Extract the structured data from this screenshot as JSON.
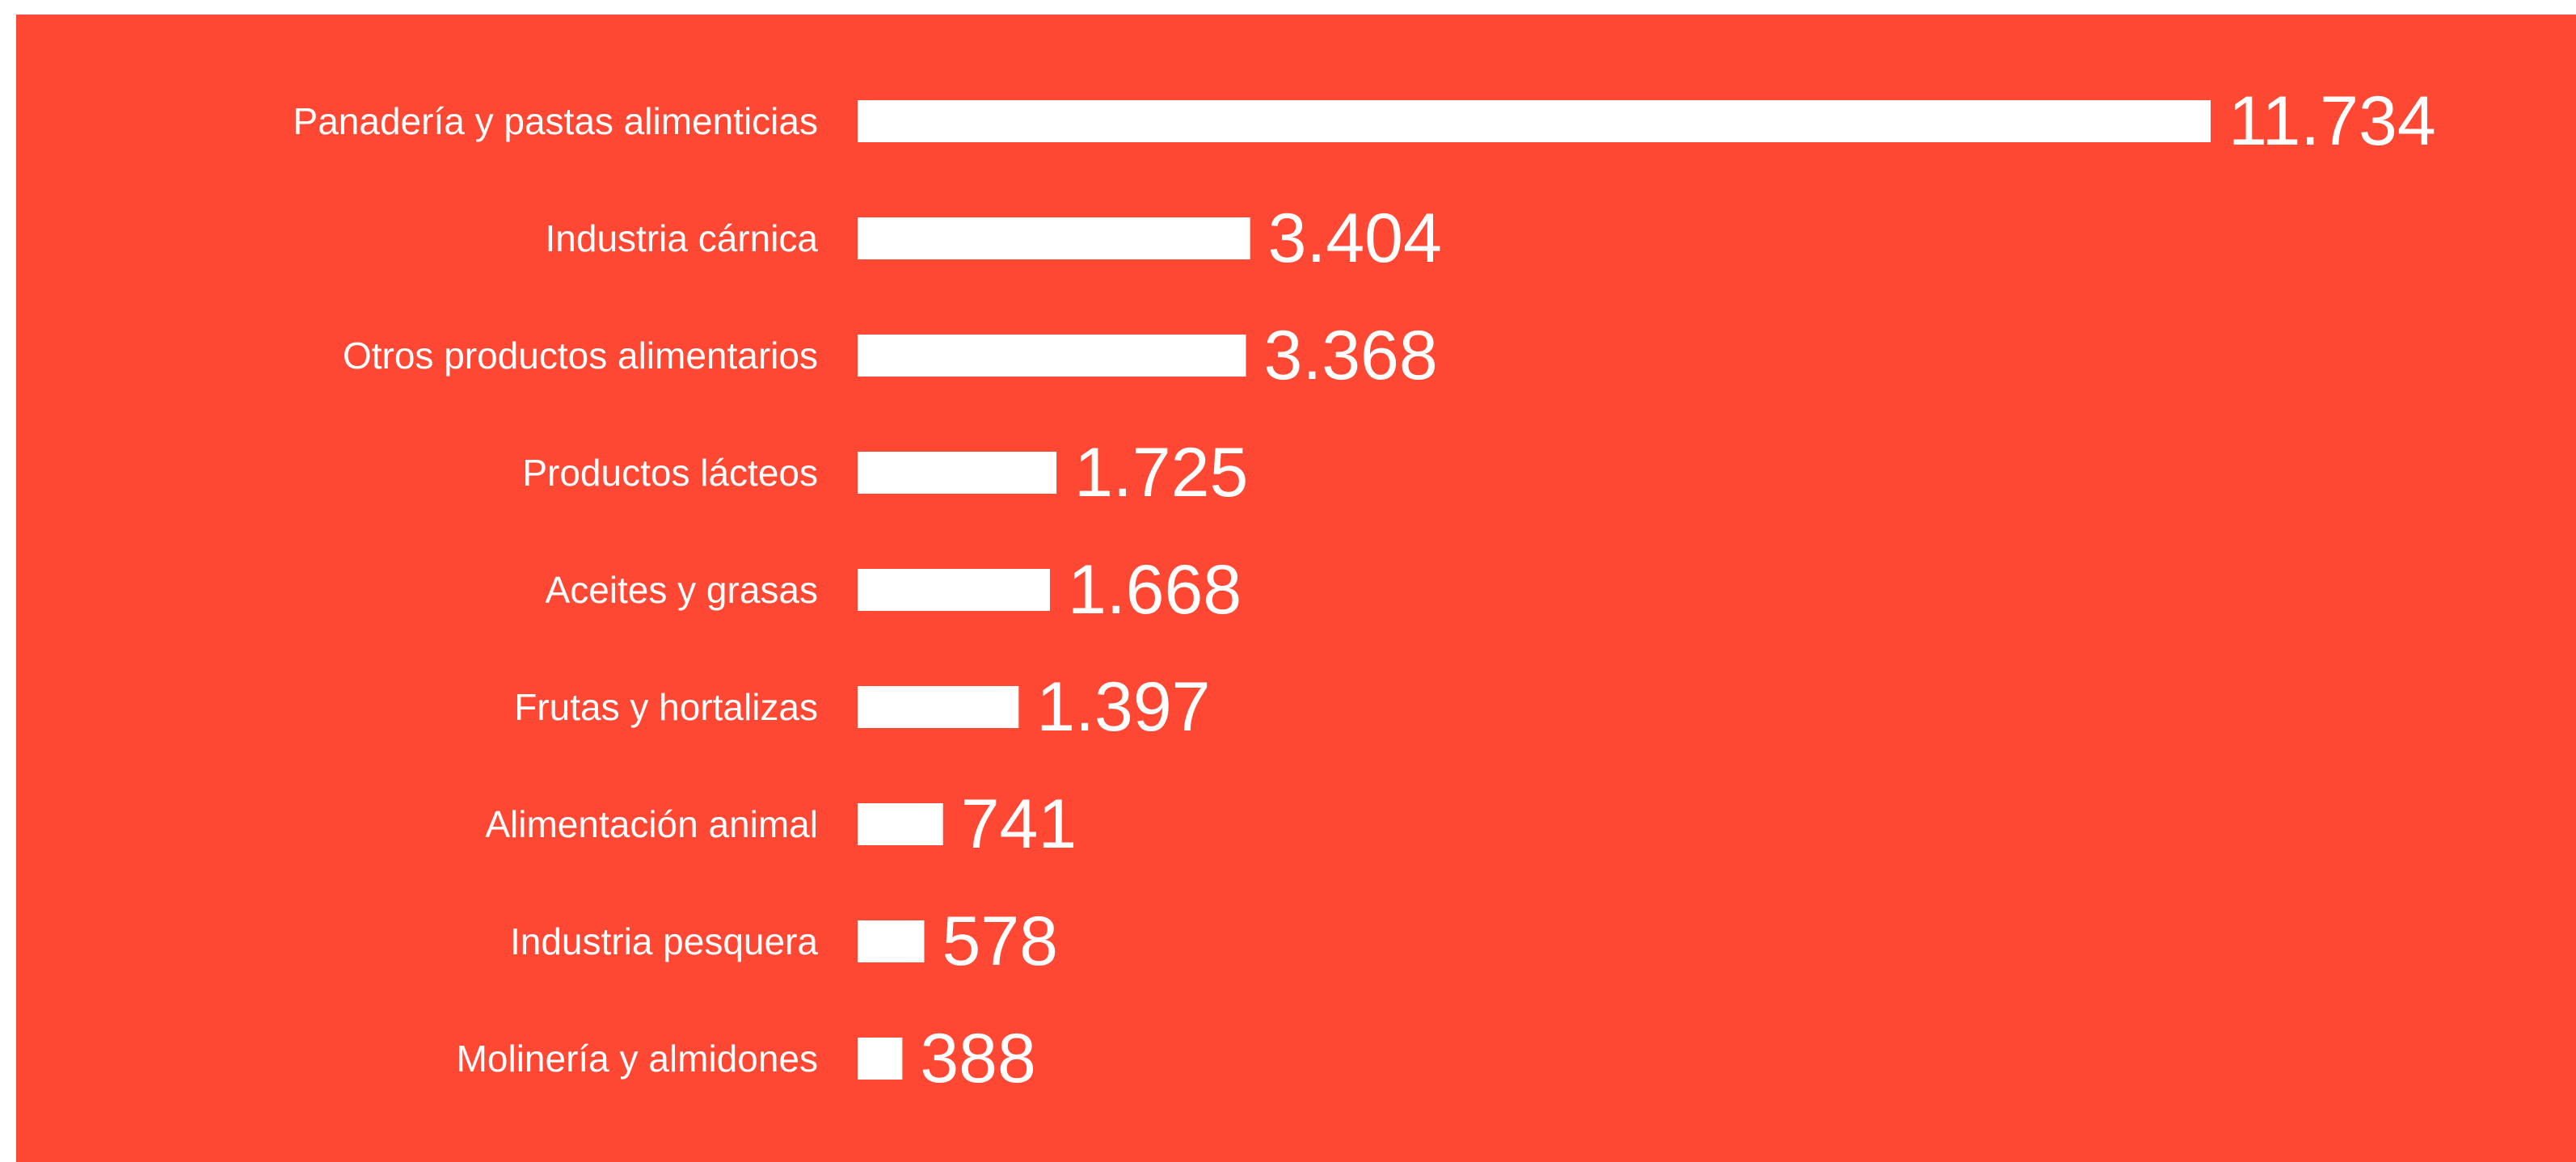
{
  "colors": {
    "background": "#ff4834",
    "bar": "#ffffff",
    "text": "#ffffff"
  },
  "chart_data": {
    "type": "bar",
    "orientation": "horizontal",
    "title": "",
    "xlabel": "",
    "ylabel": "",
    "grid": false,
    "legend": "none",
    "xlim": [
      0,
      11734
    ],
    "categories": [
      "Panadería y pastas alimenticias",
      "Industria cárnica",
      "Otros productos alimentarios",
      "Productos lácteos",
      "Aceites y grasas",
      "Frutas y hortalizas",
      "Alimentación animal",
      "Industria pesquera",
      "Molinería y almidones"
    ],
    "values": [
      11734,
      3404,
      3368,
      1725,
      1668,
      1397,
      741,
      578,
      388
    ],
    "value_labels": [
      "11.734",
      "3.404",
      "3.368",
      "1.725",
      "1.668",
      "1.397",
      "741",
      "578",
      "388"
    ]
  }
}
